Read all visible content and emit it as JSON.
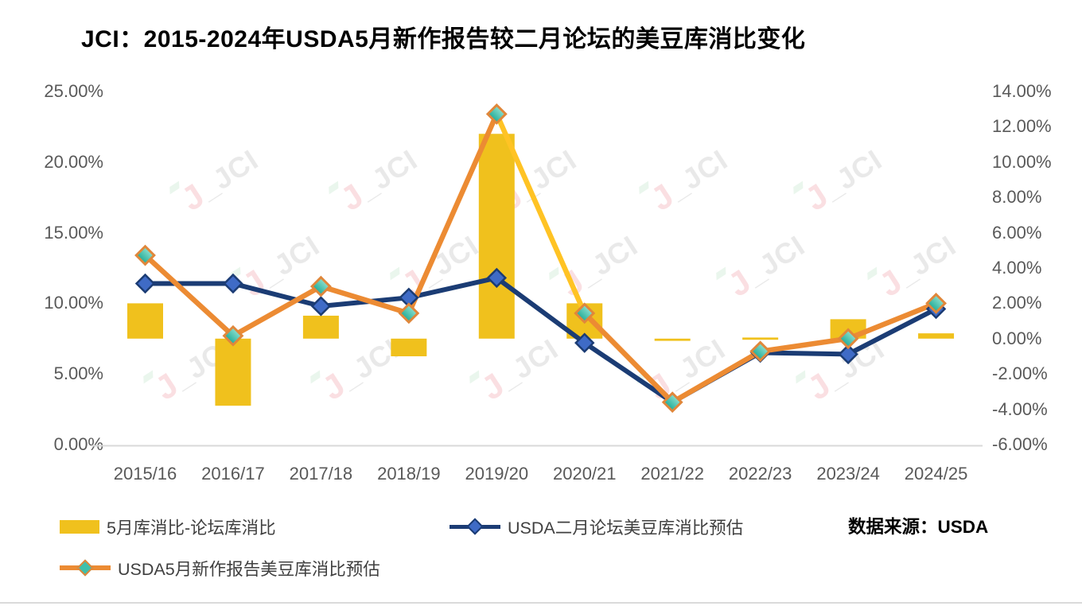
{
  "title": "JCI：2015-2024年USDA5月新作报告较二月论坛的美豆库消比变化",
  "source_note": "数据来源：USDA",
  "legend": {
    "bar_label": "5月库消比-论坛库消比",
    "forum_label": "USDA二月论坛美豆库消比预估",
    "may_label": "USDA5月新作报告美豆库消比预估"
  },
  "watermark": {
    "logo_glyph": "J",
    "label": "_JCI"
  },
  "colors": {
    "bar": "#F0C11D",
    "forum_line": "#1B3C74",
    "forum_marker": "#3F6BC6",
    "may_line": "#EC8B33",
    "may_marker_fill_top": "#8ADECD",
    "may_marker_fill_bottom": "#23AD99",
    "may_marker_border": "#E0873B",
    "may_highlight_segment": "#FFC324",
    "axis_text": "#595959",
    "legend_text": "#3F3F3F",
    "axis_line": "#D9D9D9"
  },
  "chart_data": {
    "type": "combo bar+line, dual y-axis",
    "categories": [
      "2015/16",
      "2016/17",
      "2017/18",
      "2018/19",
      "2019/20",
      "2020/21",
      "2021/22",
      "2022/23",
      "2023/24",
      "2024/25"
    ],
    "series": [
      {
        "name": "5月库消比-论坛库消比",
        "type": "bar",
        "axis": "right",
        "values_pct": [
          2.0,
          -3.8,
          1.3,
          -1.0,
          11.6,
          2.0,
          -0.1,
          0.0,
          1.1,
          0.3
        ]
      },
      {
        "name": "USDA二月论坛美豆库消比预估",
        "type": "line",
        "axis": "left",
        "marker": "diamond",
        "values_pct": [
          11.4,
          11.4,
          9.8,
          10.4,
          11.8,
          7.2,
          3.0,
          6.5,
          6.4,
          9.6
        ]
      },
      {
        "name": "USDA5月新作报告美豆库消比预估",
        "type": "line",
        "axis": "left",
        "marker": "diamond",
        "values_pct": [
          13.4,
          7.7,
          11.2,
          9.3,
          23.4,
          9.3,
          3.0,
          6.6,
          7.5,
          10.0
        ],
        "highlight_segment_index": 4
      }
    ],
    "left_axis_ticks": [
      "25.00%",
      "20.00%",
      "15.00%",
      "10.00%",
      "5.00%",
      "0.00%"
    ],
    "right_axis_ticks": [
      "14.00%",
      "12.00%",
      "10.00%",
      "8.00%",
      "6.00%",
      "4.00%",
      "2.00%",
      "0.00%",
      "-2.00%",
      "-4.00%",
      "-6.00%"
    ],
    "left_axis_range": [
      0,
      25
    ],
    "right_axis_range": [
      -6,
      14
    ],
    "grid": "off",
    "legend_position": "bottom"
  }
}
